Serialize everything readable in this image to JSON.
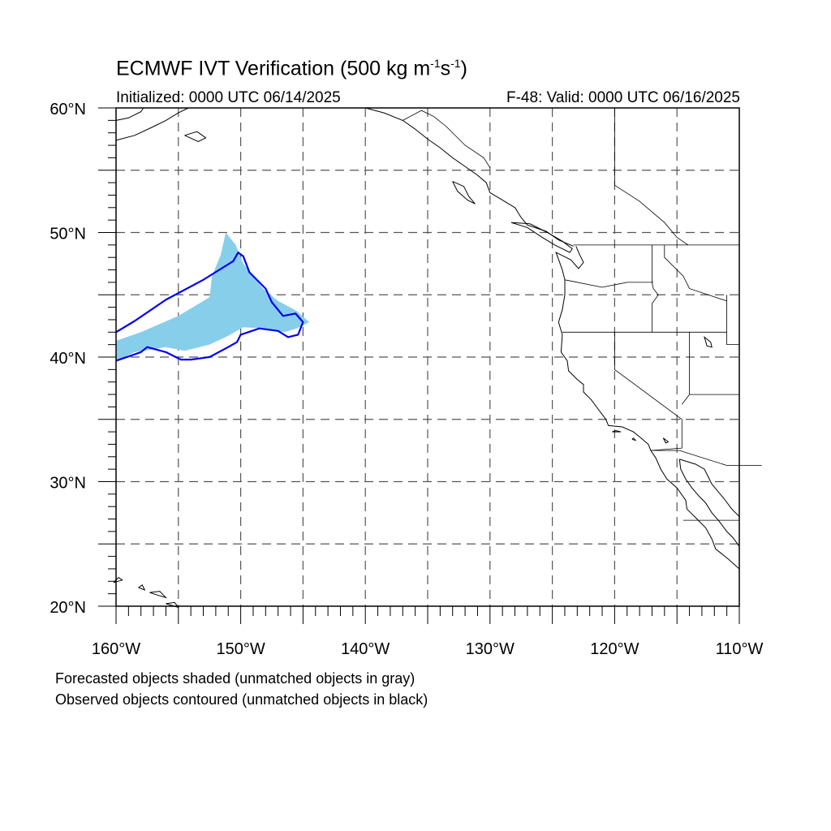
{
  "title": {
    "main": "ECMWF IVT Verification (500 kg m",
    "sup1": "-1",
    "mid": "s",
    "sup2": "-1",
    "end": ")"
  },
  "subtitle_left": "Initialized: 0000 UTC 06/14/2025",
  "subtitle_right": "F-48: Valid: 0000 UTC 06/16/2025",
  "legend_notes": [
    "Forecasted objects shaded (unmatched objects in gray)",
    "Observed objects contoured (unmatched objects in black)"
  ],
  "map": {
    "lon_range": [
      -160,
      -110
    ],
    "lat_range": [
      20,
      60
    ],
    "lon_ticks": [
      {
        "value": -160,
        "label": "160°W"
      },
      {
        "value": -150,
        "label": "150°W"
      },
      {
        "value": -140,
        "label": "140°W"
      },
      {
        "value": -130,
        "label": "130°W"
      },
      {
        "value": -120,
        "label": "120°W"
      },
      {
        "value": -110,
        "label": "110°W"
      }
    ],
    "lat_ticks": [
      {
        "value": 20,
        "label": "20°N"
      },
      {
        "value": 30,
        "label": "30°N"
      },
      {
        "value": 40,
        "label": "40°N"
      },
      {
        "value": 50,
        "label": "50°N"
      },
      {
        "value": 60,
        "label": "60°N"
      }
    ],
    "gridlines": "dashed every 5 degrees",
    "forecast_color": "#87ceeb",
    "observed_color": "#0000ee",
    "coast_color": "#000000",
    "forecast_object": [
      [
        -160,
        41.3
      ],
      [
        -158,
        42.0
      ],
      [
        -155,
        43.3
      ],
      [
        -152.5,
        44.8
      ],
      [
        -152.3,
        46.5
      ],
      [
        -151.6,
        48.2
      ],
      [
        -151.2,
        50.0
      ],
      [
        -150.4,
        49.0
      ],
      [
        -149.8,
        47.5
      ],
      [
        -148.2,
        45.5
      ],
      [
        -147.0,
        44.5
      ],
      [
        -145.5,
        43.7
      ],
      [
        -144.5,
        42.8
      ],
      [
        -145.5,
        42.3
      ],
      [
        -146.5,
        42.0
      ],
      [
        -148.0,
        42.3
      ],
      [
        -149.8,
        42.4
      ],
      [
        -151.0,
        41.7
      ],
      [
        -152.5,
        41.0
      ],
      [
        -154.5,
        40.5
      ],
      [
        -156.0,
        40.8
      ],
      [
        -158.5,
        40.4
      ],
      [
        -160,
        39.7
      ]
    ],
    "observed_object": [
      [
        -160,
        39.7
      ],
      [
        -158.0,
        40.4
      ],
      [
        -157.5,
        40.8
      ],
      [
        -156.0,
        40.4
      ],
      [
        -154.8,
        39.8
      ],
      [
        -154.0,
        39.8
      ],
      [
        -152.5,
        40.0
      ],
      [
        -151.0,
        40.8
      ],
      [
        -150.3,
        41.2
      ],
      [
        -150.0,
        41.8
      ],
      [
        -148.5,
        42.3
      ],
      [
        -147.0,
        42.1
      ],
      [
        -146.2,
        41.6
      ],
      [
        -145.4,
        41.8
      ],
      [
        -145.0,
        42.8
      ],
      [
        -145.6,
        43.5
      ],
      [
        -146.6,
        43.3
      ],
      [
        -147.5,
        44.4
      ],
      [
        -148.0,
        45.5
      ],
      [
        -149.3,
        46.8
      ],
      [
        -149.8,
        48.1
      ],
      [
        -150.2,
        48.4
      ],
      [
        -150.6,
        47.7
      ],
      [
        -153.0,
        46.2
      ],
      [
        -156.0,
        44.6
      ],
      [
        -158.5,
        42.9
      ],
      [
        -160,
        42.0
      ]
    ]
  }
}
